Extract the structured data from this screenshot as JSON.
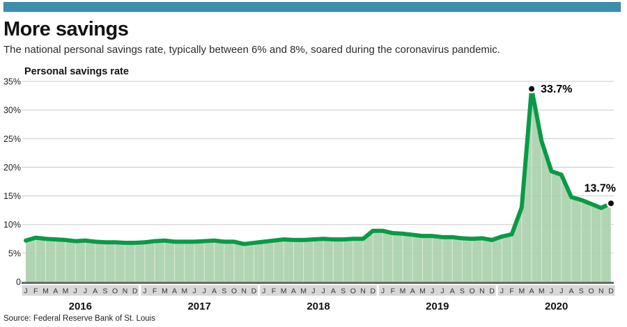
{
  "header": {
    "title": "More savings",
    "subtitle": "The national personal savings rate, typically between 6% and 8%, soared during the coronavirus pandemic."
  },
  "chart_data": {
    "type": "area",
    "title": "Personal savings rate",
    "xlabel": "",
    "ylabel": "Personal savings rate",
    "ylim": [
      0,
      35
    ],
    "grid": "horizontal",
    "yticks": [
      {
        "value": 35,
        "label": "35%"
      },
      {
        "value": 30,
        "label": "30%"
      },
      {
        "value": 25,
        "label": "25%"
      },
      {
        "value": 20,
        "label": "20%"
      },
      {
        "value": 15,
        "label": "15%"
      },
      {
        "value": 10,
        "label": "10%"
      },
      {
        "value": 5,
        "label": "5%"
      },
      {
        "value": 0,
        "label": "0"
      }
    ],
    "years": [
      "2016",
      "2017",
      "2018",
      "2019",
      "2020"
    ],
    "month_letters": [
      "J",
      "F",
      "M",
      "A",
      "M",
      "J",
      "J",
      "A",
      "S",
      "O",
      "N",
      "D"
    ],
    "values": [
      7.2,
      7.7,
      7.5,
      7.4,
      7.3,
      7.1,
      7.2,
      7.0,
      6.9,
      6.9,
      6.8,
      6.8,
      6.9,
      7.1,
      7.2,
      7.0,
      7.0,
      7.0,
      7.1,
      7.2,
      7.0,
      7.0,
      6.6,
      6.8,
      7.0,
      7.2,
      7.4,
      7.3,
      7.3,
      7.4,
      7.5,
      7.4,
      7.4,
      7.5,
      7.5,
      8.9,
      8.9,
      8.5,
      8.4,
      8.2,
      8.0,
      8.0,
      7.8,
      7.8,
      7.6,
      7.5,
      7.6,
      7.3,
      7.9,
      8.3,
      13.0,
      33.7,
      24.6,
      19.3,
      18.7,
      14.8,
      14.3,
      13.6,
      12.9,
      13.7
    ],
    "annotations": [
      {
        "month_index": 51,
        "value": 33.7,
        "label": "33.7%",
        "placement": "right"
      },
      {
        "month_index": 59,
        "value": 13.7,
        "label": "13.7%",
        "placement": "above-left"
      }
    ],
    "colors": {
      "accent_bar": "#3d8fb0",
      "line": "#0a9a46",
      "fill": "#a9d0ab",
      "fill_gridline": "#ffffff",
      "axis_gridline": "#c9c9c9",
      "baseline": "#6a6a6a",
      "month_band": "#d8d8d8",
      "dot": "#111111",
      "annotation_text": "#000000"
    },
    "legend": null,
    "source": "Source: Federal Reserve Bank of St. Louis"
  }
}
